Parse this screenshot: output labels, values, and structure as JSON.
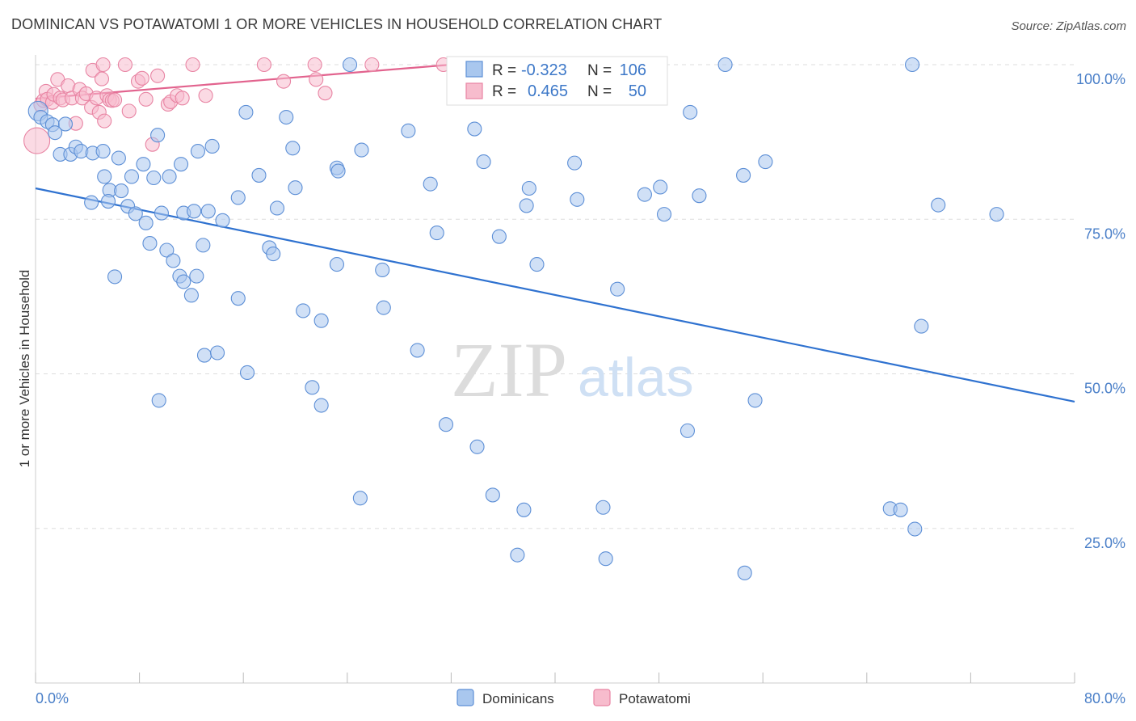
{
  "title": "DOMINICAN VS POTAWATOMI 1 OR MORE VEHICLES IN HOUSEHOLD CORRELATION CHART",
  "source": "Source: ZipAtlas.com",
  "watermark": {
    "zip": "ZIP",
    "atlas": "atlas"
  },
  "colors": {
    "dominican_fill": "#a9c7ee",
    "dominican_stroke": "#5d8fd6",
    "dominican_line": "#2f72d0",
    "potawatomi_fill": "#f7bccd",
    "potawatomi_stroke": "#e884a3",
    "potawatomi_line": "#e2638e",
    "axis_text": "#4a7fc8",
    "grid": "#dddddd"
  },
  "stats": {
    "r_label": "R =",
    "n_label": "N =",
    "dominican": {
      "r": "-0.323",
      "n": "106"
    },
    "potawatomi": {
      "r": "0.465",
      "n": "50"
    }
  },
  "legend": {
    "dominican": "Dominicans",
    "potawatomi": "Potawatomi"
  },
  "chart_data": {
    "type": "scatter",
    "title": "DOMINICAN VS POTAWATOMI 1 OR MORE VEHICLES IN HOUSEHOLD CORRELATION CHART",
    "xlabel": "",
    "ylabel": "1 or more Vehicles in Household",
    "xlim": [
      0,
      80
    ],
    "ylim": [
      0,
      100
    ],
    "x_tick_labels": [
      "0.0%",
      "80.0%"
    ],
    "y_ticks": [
      25,
      50,
      75,
      100
    ],
    "y_tick_labels": [
      "25.0%",
      "50.0%",
      "75.0%",
      "100.0%"
    ],
    "grid": true,
    "legend_position": "bottom-center",
    "series": [
      {
        "name": "Dominicans",
        "trend": {
          "x": [
            0,
            80
          ],
          "y": [
            80.0,
            45.5
          ]
        },
        "points": [
          [
            0.2,
            92.5
          ],
          [
            0.4,
            91.5
          ],
          [
            0.9,
            90.8
          ],
          [
            1.3,
            90.3
          ],
          [
            1.5,
            89.0
          ],
          [
            2.3,
            90.4
          ],
          [
            1.9,
            85.5
          ],
          [
            2.7,
            85.5
          ],
          [
            3.1,
            86.7
          ],
          [
            3.5,
            86.0
          ],
          [
            4.4,
            85.7
          ],
          [
            5.2,
            86.0
          ],
          [
            6.4,
            84.9
          ],
          [
            7.4,
            81.9
          ],
          [
            5.3,
            81.9
          ],
          [
            4.3,
            77.7
          ],
          [
            5.7,
            79.7
          ],
          [
            6.6,
            79.6
          ],
          [
            5.6,
            77.9
          ],
          [
            7.1,
            77.1
          ],
          [
            7.7,
            75.9
          ],
          [
            8.5,
            74.4
          ],
          [
            9.7,
            76.0
          ],
          [
            10.3,
            81.9
          ],
          [
            11.2,
            83.9
          ],
          [
            8.3,
            83.9
          ],
          [
            11.4,
            76.0
          ],
          [
            12.2,
            76.3
          ],
          [
            13.3,
            76.3
          ],
          [
            12.5,
            86.0
          ],
          [
            13.6,
            86.8
          ],
          [
            14.4,
            74.8
          ],
          [
            15.6,
            78.5
          ],
          [
            16.2,
            92.3
          ],
          [
            17.2,
            82.1
          ],
          [
            18.0,
            70.4
          ],
          [
            18.3,
            69.4
          ],
          [
            18.6,
            76.8
          ],
          [
            19.3,
            91.5
          ],
          [
            19.8,
            86.5
          ],
          [
            20.0,
            80.1
          ],
          [
            20.6,
            60.2
          ],
          [
            21.3,
            47.8
          ],
          [
            22.0,
            44.9
          ],
          [
            22.0,
            58.6
          ],
          [
            23.2,
            83.3
          ],
          [
            23.2,
            67.7
          ],
          [
            23.3,
            82.8
          ],
          [
            24.2,
            100.0
          ],
          [
            25.1,
            86.2
          ],
          [
            25.0,
            29.9
          ],
          [
            26.7,
            66.8
          ],
          [
            26.8,
            60.7
          ],
          [
            28.7,
            89.3
          ],
          [
            29.4,
            53.8
          ],
          [
            30.4,
            80.7
          ],
          [
            30.9,
            72.8
          ],
          [
            31.6,
            41.8
          ],
          [
            33.8,
            89.6
          ],
          [
            34.0,
            38.2
          ],
          [
            34.5,
            84.3
          ],
          [
            35.2,
            30.4
          ],
          [
            35.7,
            72.2
          ],
          [
            37.1,
            20.7
          ],
          [
            37.6,
            28.0
          ],
          [
            37.8,
            77.2
          ],
          [
            38.0,
            80.0
          ],
          [
            38.6,
            67.7
          ],
          [
            41.5,
            84.1
          ],
          [
            41.7,
            78.2
          ],
          [
            43.7,
            28.4
          ],
          [
            43.9,
            20.1
          ],
          [
            44.8,
            63.7
          ],
          [
            46.9,
            79.0
          ],
          [
            48.1,
            80.2
          ],
          [
            48.4,
            75.8
          ],
          [
            50.2,
            40.8
          ],
          [
            50.4,
            92.3
          ],
          [
            51.1,
            78.8
          ],
          [
            53.1,
            100.0
          ],
          [
            54.5,
            82.1
          ],
          [
            54.6,
            17.8
          ],
          [
            55.4,
            45.7
          ],
          [
            56.2,
            84.3
          ],
          [
            65.8,
            28.2
          ],
          [
            66.6,
            28.0
          ],
          [
            67.7,
            24.9
          ],
          [
            68.2,
            57.7
          ],
          [
            69.5,
            77.3
          ],
          [
            74.0,
            75.8
          ],
          [
            67.5,
            100.0
          ],
          [
            9.1,
            81.7
          ],
          [
            10.1,
            70.0
          ],
          [
            10.6,
            68.3
          ],
          [
            11.1,
            65.8
          ],
          [
            11.4,
            64.9
          ],
          [
            12.0,
            62.7
          ],
          [
            12.4,
            65.8
          ],
          [
            13.0,
            53.0
          ],
          [
            14.0,
            53.4
          ],
          [
            15.6,
            62.2
          ],
          [
            16.3,
            50.2
          ],
          [
            9.5,
            45.7
          ],
          [
            6.1,
            65.7
          ],
          [
            8.8,
            71.1
          ],
          [
            12.9,
            70.8
          ],
          [
            9.4,
            88.6
          ]
        ]
      },
      {
        "name": "Potawatomi",
        "trend": {
          "x": [
            0,
            32
          ],
          "y": [
            94.5,
            100.0
          ]
        },
        "points": [
          [
            0.1,
            87.7
          ],
          [
            0.4,
            93.5
          ],
          [
            0.6,
            94.2
          ],
          [
            0.8,
            95.7
          ],
          [
            0.9,
            94.4
          ],
          [
            1.3,
            93.9
          ],
          [
            1.4,
            95.2
          ],
          [
            1.7,
            97.6
          ],
          [
            1.9,
            94.6
          ],
          [
            2.1,
            94.3
          ],
          [
            2.5,
            96.6
          ],
          [
            2.8,
            94.6
          ],
          [
            3.1,
            90.5
          ],
          [
            3.4,
            96.0
          ],
          [
            3.6,
            94.6
          ],
          [
            3.9,
            95.3
          ],
          [
            4.3,
            93.1
          ],
          [
            4.4,
            99.1
          ],
          [
            4.7,
            94.6
          ],
          [
            4.9,
            92.3
          ],
          [
            5.1,
            97.7
          ],
          [
            5.2,
            100.0
          ],
          [
            5.3,
            90.9
          ],
          [
            5.5,
            95.0
          ],
          [
            5.7,
            94.3
          ],
          [
            5.9,
            94.2
          ],
          [
            6.1,
            94.3
          ],
          [
            6.9,
            100.0
          ],
          [
            7.2,
            92.5
          ],
          [
            7.9,
            97.3
          ],
          [
            8.2,
            97.8
          ],
          [
            8.5,
            94.4
          ],
          [
            9.0,
            87.1
          ],
          [
            9.4,
            98.2
          ],
          [
            10.2,
            93.6
          ],
          [
            10.4,
            94.0
          ],
          [
            10.9,
            95.0
          ],
          [
            11.3,
            94.6
          ],
          [
            12.1,
            100.0
          ],
          [
            13.1,
            95.0
          ],
          [
            17.6,
            100.0
          ],
          [
            19.1,
            97.3
          ],
          [
            21.5,
            100.0
          ],
          [
            21.6,
            97.6
          ],
          [
            22.3,
            95.4
          ],
          [
            25.9,
            100.0
          ],
          [
            31.4,
            100.0
          ],
          [
            33.0,
            100.0
          ],
          [
            43.0,
            100.0
          ],
          [
            37.3,
            100.0
          ]
        ]
      }
    ]
  }
}
